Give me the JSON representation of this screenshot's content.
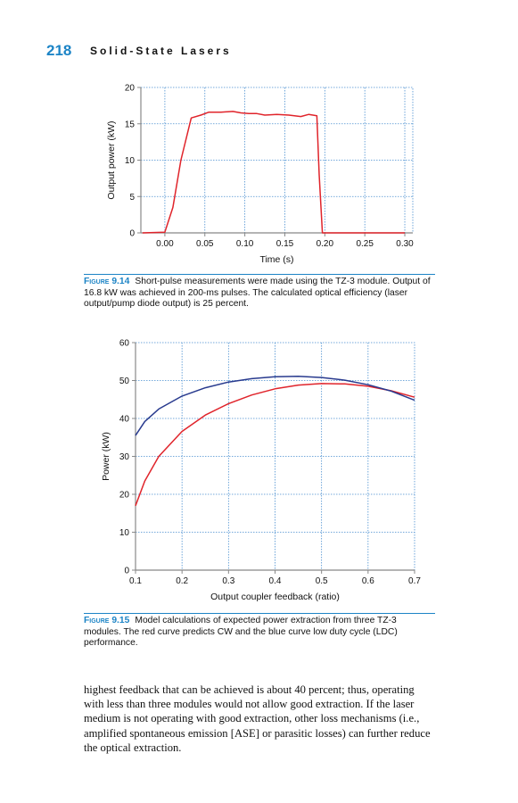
{
  "header": {
    "page_number": "218",
    "book_title": "Solid-State Lasers"
  },
  "figures": [
    {
      "label": "Figure 9.14",
      "caption": "Short-pulse measurements were made using the TZ-3 module. Output of 16.8 kW was achieved in 200-ms pulses. The calculated optical efficiency (laser output/pump diode output) is 25 percent."
    },
    {
      "label": "Figure 9.15",
      "caption": "Model calculations of expected power extraction from three TZ-3 modules. The red curve predicts CW and the blue curve low duty cycle (LDC) performance."
    }
  ],
  "body_text": "highest feedback that can be achieved is about 40 percent; thus, operating with less than three modules would not allow good extraction. If the laser medium is not operating with good extraction, other loss mechanisms (i.e., amplified spontaneous emission [ASE] or parasitic losses) can further reduce the optical extraction.",
  "chart_data": [
    {
      "type": "line",
      "title": "",
      "xlabel": "Time (s)",
      "ylabel": "Output power (kW)",
      "xlim": [
        -0.03,
        0.31
      ],
      "ylim": [
        0,
        20
      ],
      "xticks": [
        0.0,
        0.05,
        0.1,
        0.15,
        0.2,
        0.25,
        0.3
      ],
      "xtick_labels": [
        "0.00",
        "0.05",
        "0.10",
        "0.15",
        "0.20",
        "0.25",
        "0.30"
      ],
      "yticks": [
        0,
        5,
        10,
        15,
        20
      ],
      "ytick_labels": [
        "0",
        "5",
        "10",
        "15",
        "20"
      ],
      "grid": true,
      "colors": {
        "series": "#e0242b",
        "grid": "#4a8fd0",
        "axis": "#888888"
      },
      "series": [
        {
          "color": "#e0242b",
          "x": [
            -0.028,
            0.0,
            0.01,
            0.02,
            0.033,
            0.045,
            0.055,
            0.07,
            0.085,
            0.095,
            0.105,
            0.115,
            0.125,
            0.14,
            0.155,
            0.17,
            0.18,
            0.19,
            0.193,
            0.197,
            0.21,
            0.25,
            0.3
          ],
          "y": [
            0.0,
            0.1,
            3.5,
            10.0,
            15.8,
            16.2,
            16.6,
            16.6,
            16.7,
            16.5,
            16.4,
            16.4,
            16.2,
            16.3,
            16.2,
            16.0,
            16.3,
            16.1,
            8.0,
            0.0,
            0.0,
            0.0,
            0.0
          ]
        }
      ]
    },
    {
      "type": "line",
      "title": "",
      "xlabel": "Output coupler feedback (ratio)",
      "ylabel": "Power (kW)",
      "xlim": [
        0.1,
        0.7
      ],
      "ylim": [
        0,
        60
      ],
      "xticks": [
        0.1,
        0.2,
        0.3,
        0.4,
        0.5,
        0.6,
        0.7
      ],
      "xtick_labels": [
        "0.1",
        "0.2",
        "0.3",
        "0.4",
        "0.5",
        "0.6",
        "0.7"
      ],
      "yticks": [
        0,
        10,
        20,
        30,
        40,
        50,
        60
      ],
      "ytick_labels": [
        "0",
        "10",
        "20",
        "30",
        "40",
        "50",
        "60"
      ],
      "grid": true,
      "colors": {
        "red": "#e0242b",
        "blue": "#283a8e",
        "grid": "#4a8fd0",
        "axis": "#888888"
      },
      "series": [
        {
          "color": "#e0242b",
          "x": [
            0.1,
            0.12,
            0.15,
            0.2,
            0.25,
            0.3,
            0.35,
            0.4,
            0.45,
            0.5,
            0.55,
            0.6,
            0.65,
            0.7
          ],
          "y": [
            17.0,
            23.5,
            30.0,
            36.6,
            40.9,
            43.9,
            46.2,
            47.8,
            48.8,
            49.2,
            49.1,
            48.5,
            47.3,
            45.6
          ]
        },
        {
          "color": "#283a8e",
          "x": [
            0.1,
            0.12,
            0.15,
            0.2,
            0.25,
            0.3,
            0.35,
            0.4,
            0.45,
            0.5,
            0.55,
            0.6,
            0.65,
            0.7
          ],
          "y": [
            35.5,
            39.2,
            42.5,
            45.9,
            48.1,
            49.6,
            50.5,
            51.0,
            51.1,
            50.8,
            50.1,
            48.9,
            47.2,
            44.8
          ]
        }
      ]
    }
  ]
}
